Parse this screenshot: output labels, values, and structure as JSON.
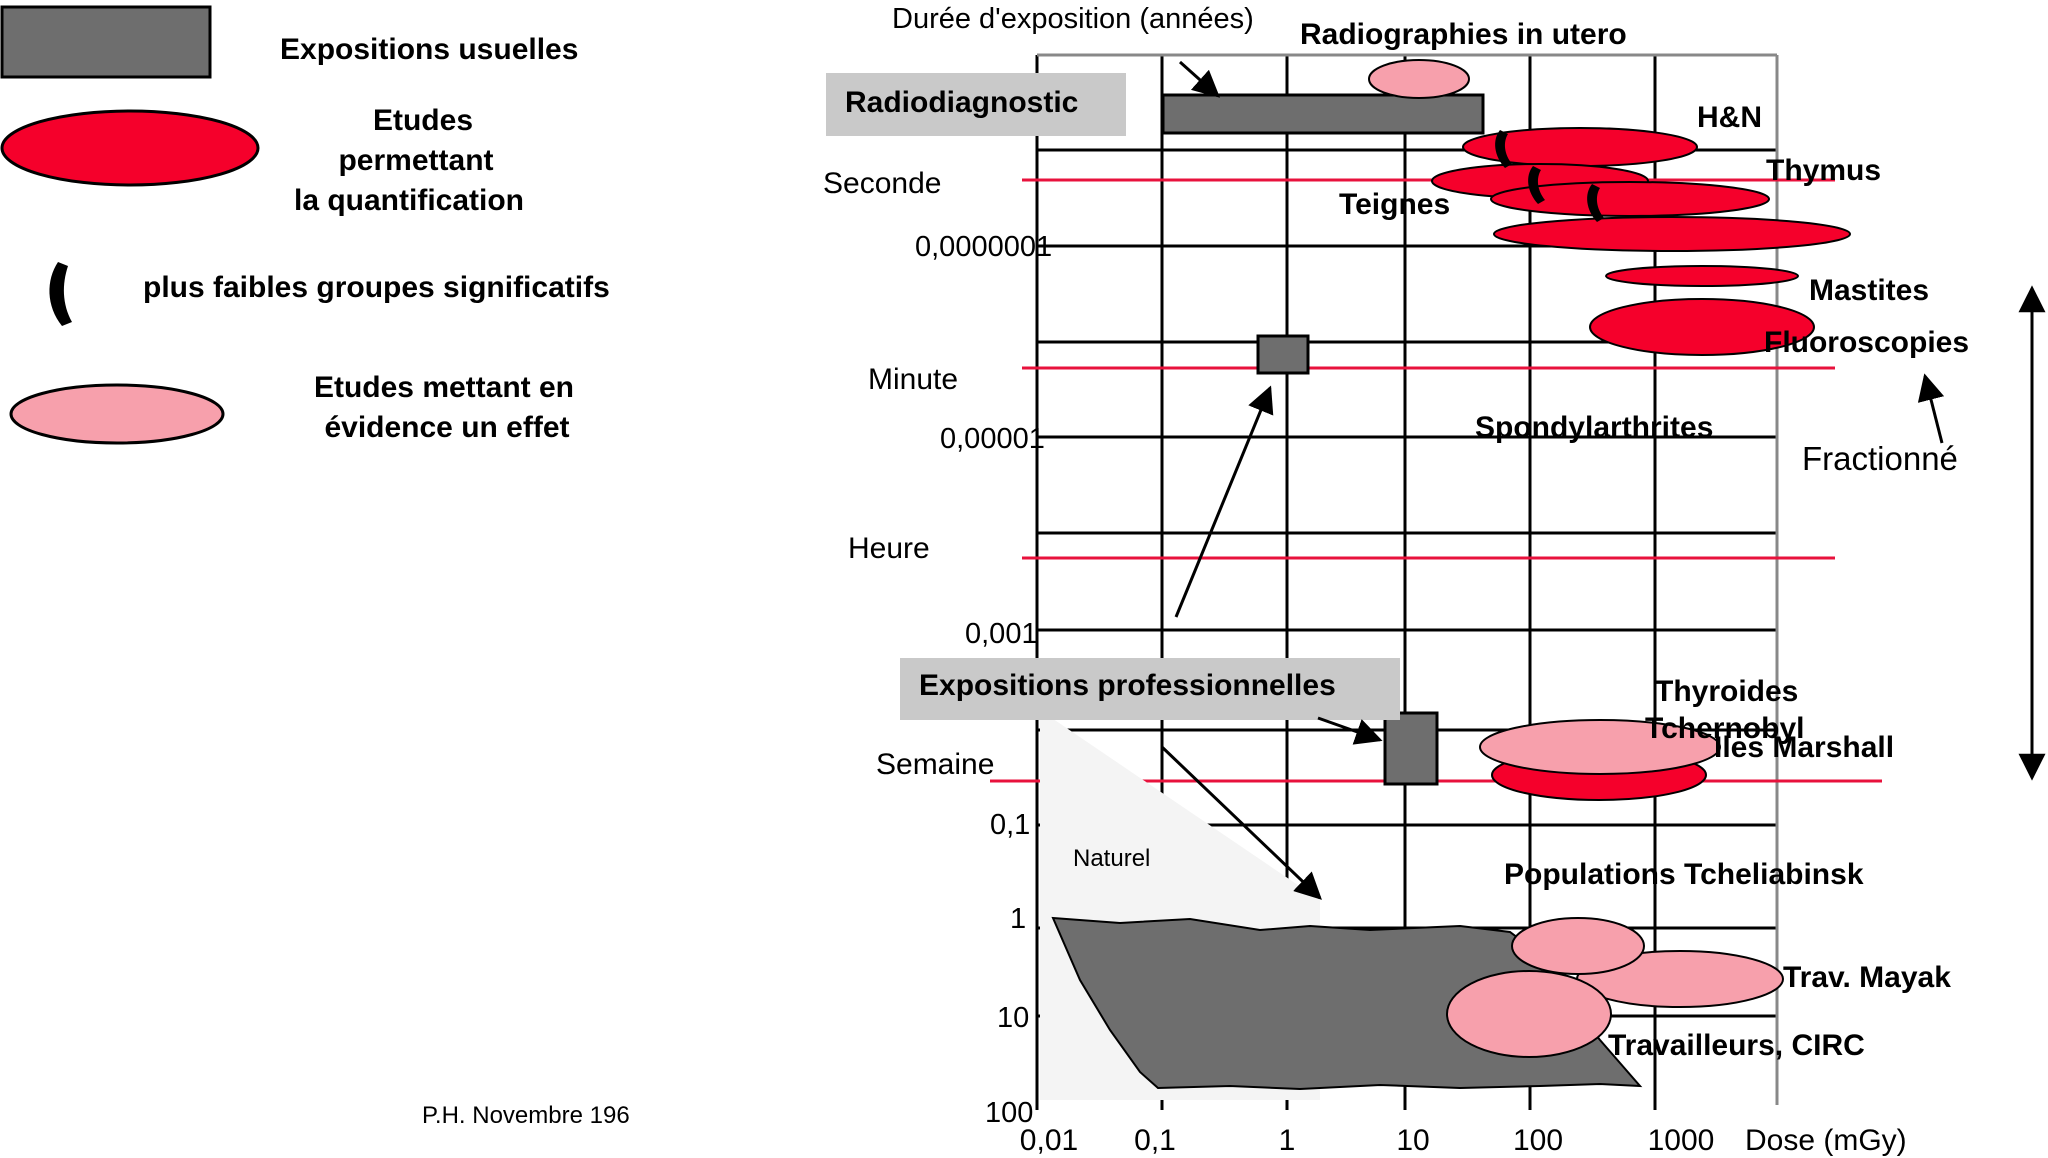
{
  "legend": {
    "usual": "Expositions usuelles",
    "quant_1": "Etudes",
    "quant_2": "permettant",
    "quant_3": "la quantification",
    "lowest": "plus faibles groupes significatifs",
    "effect_1": "Etudes mettant en",
    "effect_2": "évidence un effet"
  },
  "credit": "P.H. Novembre 196",
  "axes": {
    "y_title": "Durée d'exposition (années)",
    "x_title": "Dose (mGy)",
    "x_ticks": [
      "0,01",
      "0,1",
      "1",
      "10",
      "100",
      "1000"
    ],
    "y_ticks": [
      "0,0000001",
      "0,00001",
      "0,001",
      "0,1",
      "1",
      "10",
      "100"
    ],
    "time_labels": [
      "Seconde",
      "Minute",
      "Heure",
      "Semaine"
    ]
  },
  "boxes": {
    "radiodiag": "Radiodiagnostic",
    "pro": "Expositions professionnelles"
  },
  "labels": {
    "utero": "Radiographies in utero",
    "hn": "H&N",
    "thymus": "Thymus",
    "teignes": "Teignes",
    "mastites": "Mastites",
    "fluoro": "Fluoroscopies",
    "spondy": "Spondylarthrites",
    "fractionne": "Fractionné",
    "thyroides": "Thyroides",
    "tchernobyl": "Tchernobyl",
    "marshall": "Iles Marshall",
    "tcheliabinsk": "Populations Tcheliabinsk",
    "mayak": "Trav. Mayak",
    "circ": "Travailleurs, CIRC",
    "naturel": "Naturel"
  },
  "colors": {
    "grey": "#6e6e6e",
    "red": "#f5002b",
    "pink": "#f7a0ac",
    "label_box": "#c9c9c9",
    "red_line": "#e8123c"
  }
}
